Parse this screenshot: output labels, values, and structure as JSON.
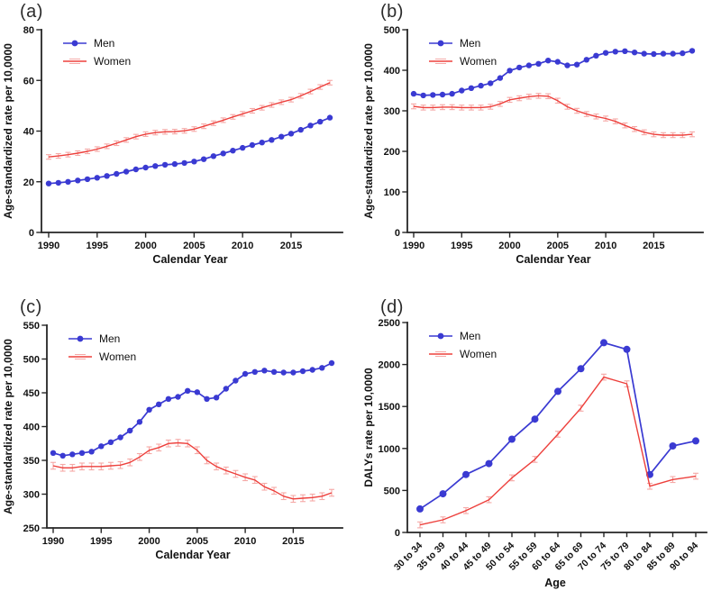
{
  "figure": {
    "colors": {
      "men": "#3a3ad2",
      "women": "#ed403c",
      "women_error": "#f5a9a7",
      "axis": "#262626",
      "text": "#111111"
    }
  },
  "chart_data": [
    {
      "id": "a",
      "panel_label": "(a)",
      "type": "line",
      "xlabel": "Calendar Year",
      "ylabel": "Age-standardized rate per 10,0000",
      "x_years": [
        1990,
        1991,
        1992,
        1993,
        1994,
        1995,
        1996,
        1997,
        1998,
        1999,
        2000,
        2001,
        2002,
        2003,
        2004,
        2005,
        2006,
        2007,
        2008,
        2009,
        2010,
        2011,
        2012,
        2013,
        2014,
        2015,
        2016,
        2017,
        2018,
        2019
      ],
      "xticks": [
        1990,
        1995,
        2000,
        2005,
        2010,
        2015
      ],
      "ylim": [
        0,
        80
      ],
      "yticks": [
        0,
        20,
        40,
        60,
        80
      ],
      "legend_position": "top-left",
      "grid": false,
      "series": [
        {
          "name": "Men",
          "color": "#3a3ad2",
          "marker": "circle",
          "values": [
            19.3,
            19.6,
            20.0,
            20.5,
            21.0,
            21.6,
            22.3,
            23.1,
            24.0,
            24.9,
            25.6,
            26.2,
            26.7,
            27.0,
            27.4,
            28.0,
            28.9,
            30.1,
            31.2,
            32.3,
            33.4,
            34.5,
            35.5,
            36.5,
            37.8,
            39.0,
            40.5,
            42.2,
            43.7,
            45.3
          ]
        },
        {
          "name": "Women",
          "color": "#ed403c",
          "marker": "none",
          "error_bars": true,
          "error_size": 0.9,
          "values": [
            29.8,
            30.2,
            30.7,
            31.3,
            32.0,
            32.9,
            34.0,
            35.2,
            36.5,
            37.8,
            38.8,
            39.4,
            39.7,
            39.8,
            40.1,
            40.8,
            41.9,
            43.1,
            44.3,
            45.6,
            46.8,
            48.0,
            49.2,
            50.3,
            51.4,
            52.4,
            53.9,
            55.6,
            57.4,
            59.1
          ]
        }
      ]
    },
    {
      "id": "b",
      "panel_label": "(b)",
      "type": "line",
      "xlabel": "Calendar Year",
      "ylabel": "Age-standardized rate per 10,0000",
      "x_years": [
        1990,
        1991,
        1992,
        1993,
        1994,
        1995,
        1996,
        1997,
        1998,
        1999,
        2000,
        2001,
        2002,
        2003,
        2004,
        2005,
        2006,
        2007,
        2008,
        2009,
        2010,
        2011,
        2012,
        2013,
        2014,
        2015,
        2016,
        2017,
        2018,
        2019
      ],
      "xticks": [
        1990,
        1995,
        2000,
        2005,
        2010,
        2015
      ],
      "ylim": [
        0,
        500
      ],
      "yticks": [
        0,
        100,
        200,
        300,
        400,
        500
      ],
      "legend_position": "top-left",
      "grid": false,
      "series": [
        {
          "name": "Men",
          "color": "#3a3ad2",
          "marker": "circle",
          "values": [
            342,
            338,
            339,
            340,
            342,
            350,
            356,
            362,
            368,
            381,
            399,
            407,
            412,
            416,
            424,
            421,
            412,
            414,
            426,
            436,
            443,
            446,
            447,
            444,
            441,
            440,
            441,
            441,
            442,
            448
          ]
        },
        {
          "name": "Women",
          "color": "#ed403c",
          "marker": "none",
          "error_bars": true,
          "error_size": 6,
          "values": [
            311,
            308,
            308,
            309,
            309,
            308,
            308,
            308,
            310,
            317,
            327,
            331,
            335,
            337,
            336,
            325,
            310,
            300,
            292,
            286,
            281,
            274,
            264,
            255,
            247,
            242,
            240,
            240,
            240,
            242
          ]
        }
      ]
    },
    {
      "id": "c",
      "panel_label": "(c)",
      "type": "line",
      "xlabel": "Calendar Year",
      "ylabel": "Age-standardized rate per 10,0000",
      "x_years": [
        1990,
        1991,
        1992,
        1993,
        1994,
        1995,
        1996,
        1997,
        1998,
        1999,
        2000,
        2001,
        2002,
        2003,
        2004,
        2005,
        2006,
        2007,
        2008,
        2009,
        2010,
        2011,
        2012,
        2013,
        2014,
        2015,
        2016,
        2017,
        2018,
        2019
      ],
      "xticks": [
        1990,
        1995,
        2000,
        2005,
        2010,
        2015
      ],
      "ylim": [
        250,
        550
      ],
      "yticks": [
        250,
        300,
        350,
        400,
        450,
        500,
        550
      ],
      "legend_position": "top-left",
      "grid": false,
      "series": [
        {
          "name": "Men",
          "color": "#3a3ad2",
          "marker": "circle",
          "values": [
            361,
            357,
            359,
            361,
            363,
            371,
            377,
            384,
            394,
            407,
            425,
            433,
            441,
            444,
            453,
            451,
            441,
            443,
            456,
            468,
            478,
            481,
            483,
            481,
            480,
            480,
            482,
            484,
            487,
            494
          ]
        },
        {
          "name": "Women",
          "color": "#ed403c",
          "marker": "none",
          "error_bars": true,
          "error_size": 5,
          "values": [
            342,
            339,
            339,
            341,
            341,
            341,
            342,
            343,
            347,
            355,
            365,
            369,
            375,
            376,
            375,
            365,
            350,
            341,
            335,
            330,
            325,
            321,
            311,
            305,
            297,
            293,
            294,
            295,
            297,
            302
          ]
        }
      ]
    },
    {
      "id": "d",
      "panel_label": "(d)",
      "type": "line",
      "xlabel": "Age",
      "ylabel": "DALYs rate per 10,0000",
      "categories": [
        "30 to 34",
        "35 to 39",
        "40 to 44",
        "45 to 49",
        "50 to 54",
        "55 to 59",
        "60 to 64",
        "65 to 69",
        "70 to 74",
        "75 to 79",
        "80 to 84",
        "85 to 89",
        "90 to 94"
      ],
      "ylim": [
        0,
        2500
      ],
      "yticks": [
        0,
        500,
        1000,
        1500,
        2000,
        2500
      ],
      "legend_position": "top-left",
      "grid": false,
      "series": [
        {
          "name": "Men",
          "color": "#3a3ad2",
          "marker": "circle",
          "values": [
            280,
            460,
            690,
            820,
            1110,
            1350,
            1680,
            1950,
            2260,
            2180,
            690,
            1030,
            1090
          ]
        },
        {
          "name": "Women",
          "color": "#ed403c",
          "marker": "none",
          "error_bars": true,
          "error_size": 35,
          "values": [
            90,
            150,
            260,
            390,
            650,
            870,
            1170,
            1480,
            1850,
            1770,
            550,
            630,
            670
          ]
        }
      ]
    }
  ]
}
